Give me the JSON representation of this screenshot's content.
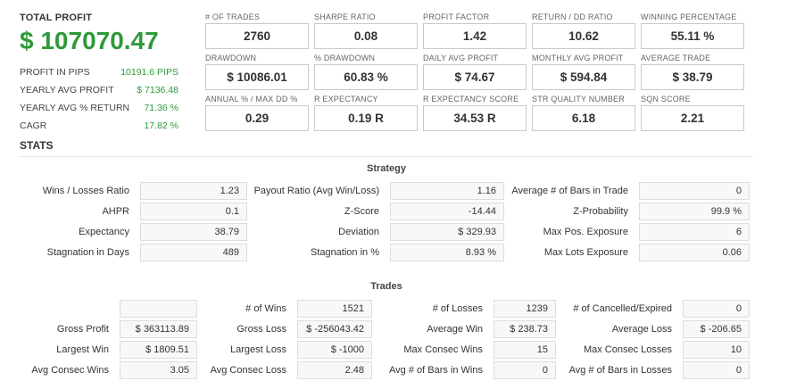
{
  "summary": {
    "total_profit_label": "TOTAL PROFIT",
    "total_profit_value": "$ 107070.47",
    "items": [
      {
        "label": "PROFIT IN PIPS",
        "value": "10191.6 PIPS"
      },
      {
        "label": "YEARLY AVG PROFIT",
        "value": "$ 7136.48"
      },
      {
        "label": "YEARLY AVG % RETURN",
        "value": "71.36 %"
      },
      {
        "label": "CAGR",
        "value": "17.82 %"
      }
    ]
  },
  "metrics": [
    [
      {
        "label": "# OF TRADES",
        "value": "2760"
      },
      {
        "label": "SHARPE RATIO",
        "value": "0.08"
      },
      {
        "label": "PROFIT FACTOR",
        "value": "1.42"
      },
      {
        "label": "RETURN / DD RATIO",
        "value": "10.62"
      },
      {
        "label": "WINNING PERCENTAGE",
        "value": "55.11 %"
      }
    ],
    [
      {
        "label": "DRAWDOWN",
        "value": "$ 10086.01"
      },
      {
        "label": "% DRAWDOWN",
        "value": "60.83 %"
      },
      {
        "label": "DAILY AVG PROFIT",
        "value": "$ 74.67"
      },
      {
        "label": "MONTHLY AVG PROFIT",
        "value": "$ 594.84"
      },
      {
        "label": "AVERAGE TRADE",
        "value": "$ 38.79"
      }
    ],
    [
      {
        "label": "ANNUAL % / MAX DD %",
        "value": "0.29"
      },
      {
        "label": "R EXPECTANCY",
        "value": "0.19 R"
      },
      {
        "label": "R EXPECTANCY SCORE",
        "value": "34.53 R"
      },
      {
        "label": "STR QUALITY NUMBER",
        "value": "6.18"
      },
      {
        "label": "SQN SCORE",
        "value": "2.21"
      }
    ]
  ],
  "stats_title": "STATS",
  "strategy": {
    "title": "Strategy",
    "rows": [
      [
        {
          "label": "Wins / Losses Ratio",
          "value": "1.23"
        },
        {
          "label": "Payout Ratio (Avg Win/Loss)",
          "value": "1.16"
        },
        {
          "label": "Average # of Bars in Trade",
          "value": "0"
        }
      ],
      [
        {
          "label": "AHPR",
          "value": "0.1"
        },
        {
          "label": "Z-Score",
          "value": "-14.44"
        },
        {
          "label": "Z-Probability",
          "value": "99.9 %"
        }
      ],
      [
        {
          "label": "Expectancy",
          "value": "38.79"
        },
        {
          "label": "Deviation",
          "value": "$ 329.93"
        },
        {
          "label": "Max Pos. Exposure",
          "value": "6"
        }
      ],
      [
        {
          "label": "Stagnation in Days",
          "value": "489"
        },
        {
          "label": "Stagnation in %",
          "value": "8.93 %"
        },
        {
          "label": "Max Lots Exposure",
          "value": "0.06"
        }
      ]
    ]
  },
  "trades": {
    "title": "Trades",
    "rows": [
      [
        {
          "label": "",
          "value": ""
        },
        {
          "label": "# of Wins",
          "value": "1521"
        },
        {
          "label": "# of Losses",
          "value": "1239"
        },
        {
          "label": "# of Cancelled/Expired",
          "value": "0"
        }
      ],
      [
        {
          "label": "Gross Profit",
          "value": "$ 363113.89"
        },
        {
          "label": "Gross Loss",
          "value": "$ -256043.42"
        },
        {
          "label": "Average Win",
          "value": "$ 238.73"
        },
        {
          "label": "Average Loss",
          "value": "$ -206.65"
        }
      ],
      [
        {
          "label": "Largest Win",
          "value": "$ 1809.51"
        },
        {
          "label": "Largest Loss",
          "value": "$ -1000"
        },
        {
          "label": "Max Consec Wins",
          "value": "15"
        },
        {
          "label": "Max Consec Losses",
          "value": "10"
        }
      ],
      [
        {
          "label": "Avg Consec Wins",
          "value": "3.05"
        },
        {
          "label": "Avg Consec Loss",
          "value": "2.48"
        },
        {
          "label": "Avg # of Bars in Wins",
          "value": "0"
        },
        {
          "label": "Avg # of Bars in Losses",
          "value": "0"
        }
      ]
    ]
  }
}
